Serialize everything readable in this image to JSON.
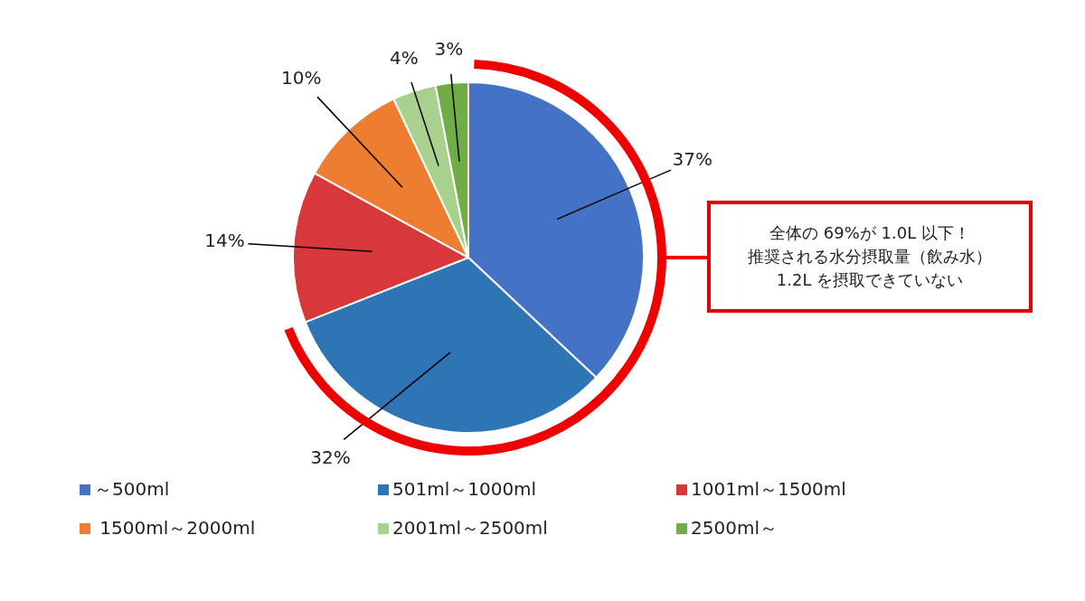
{
  "chart_data": {
    "type": "pie",
    "categories": [
      "～500ml",
      "501ml～1000ml",
      "1001ml～1500ml",
      " 1500ml～2000ml",
      "2001ml～2500ml",
      "2500ml～"
    ],
    "values": [
      37,
      32,
      14,
      10,
      4,
      3
    ],
    "colors": [
      "#4472c4",
      "#2e75b6",
      "#d9383a",
      "#ed7d31",
      "#a9d18e",
      "#70ad47"
    ],
    "value_labels": [
      "37%",
      "32%",
      "14%",
      "10%",
      "4%",
      "3%"
    ],
    "legend": "bottom",
    "annotations": [
      "全体の 69%が 1.0L 以下！",
      "推奨される水分摂取量（飲み水）",
      "1.2L を摂取できていない"
    ]
  }
}
